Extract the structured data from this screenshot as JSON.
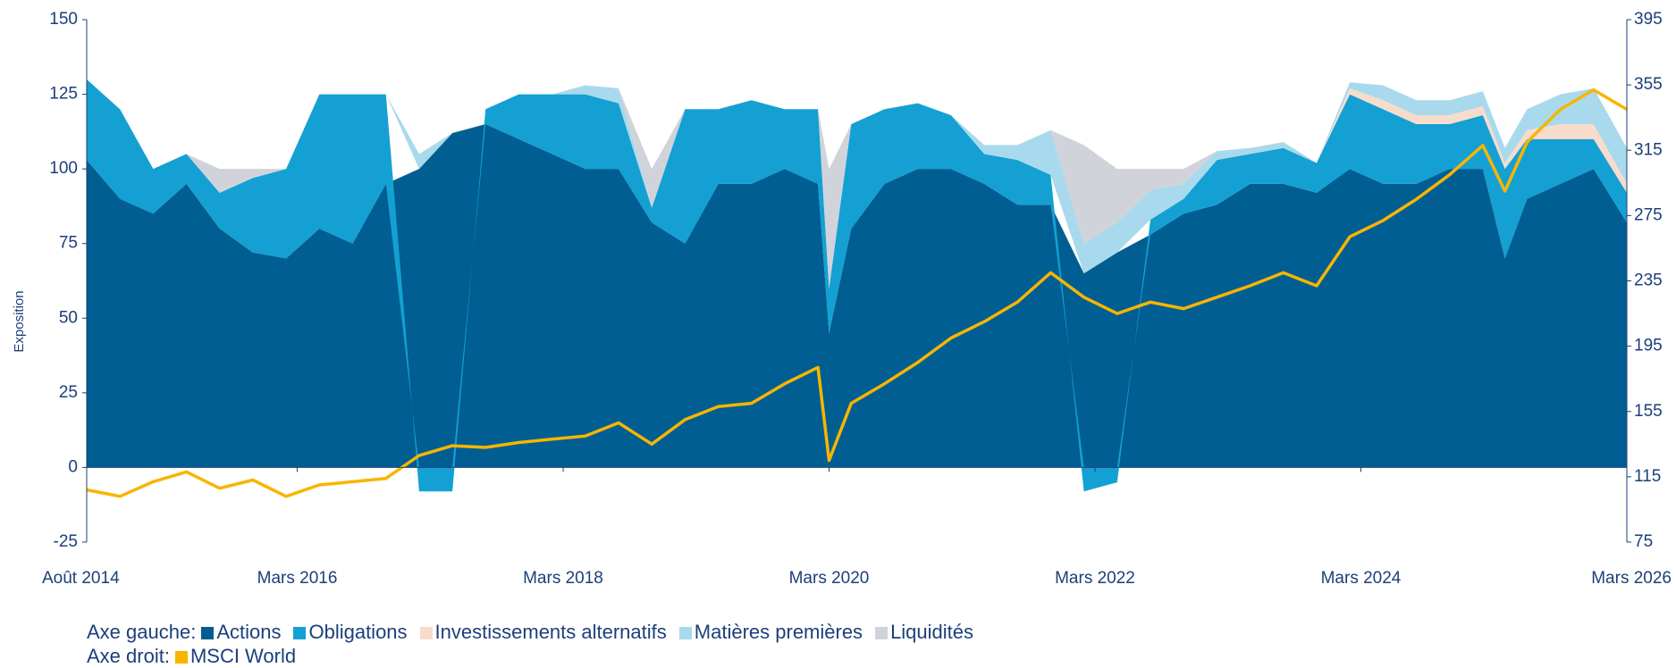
{
  "chart_data": {
    "type": "stacked-area-line",
    "y_label": "Exposition",
    "legend_left_label": "Axe gauche:",
    "legend_right_label": "Axe droit:",
    "x": [
      "2014-08",
      "2014-11",
      "2015-02",
      "2015-05",
      "2015-08",
      "2015-11",
      "2016-02",
      "2016-05",
      "2016-08",
      "2016-11",
      "2017-02",
      "2017-05",
      "2017-08",
      "2017-11",
      "2018-02",
      "2018-05",
      "2018-08",
      "2018-11",
      "2019-02",
      "2019-05",
      "2019-08",
      "2019-11",
      "2020-02",
      "2020-03",
      "2020-05",
      "2020-08",
      "2020-11",
      "2021-02",
      "2021-05",
      "2021-08",
      "2021-11",
      "2022-02",
      "2022-05",
      "2022-08",
      "2022-11",
      "2023-02",
      "2023-05",
      "2023-08",
      "2023-11",
      "2024-02",
      "2024-05",
      "2024-08",
      "2024-11",
      "2025-02",
      "2025-04",
      "2025-06",
      "2025-09",
      "2025-12",
      "2026-03"
    ],
    "xlim": [
      "2014-08",
      "2026-03"
    ],
    "xticks": [
      {
        "value": "2014-08",
        "label": "Août 2014"
      },
      {
        "value": "2016-03",
        "label": "Mars 2016"
      },
      {
        "value": "2018-03",
        "label": "Mars 2018"
      },
      {
        "value": "2020-03",
        "label": "Mars 2020"
      },
      {
        "value": "2022-03",
        "label": "Mars 2022"
      },
      {
        "value": "2024-03",
        "label": "Mars 2024"
      },
      {
        "value": "2026-03",
        "label": "Mars 2026"
      }
    ],
    "ylim": [
      -25,
      150
    ],
    "yticks": [
      -25,
      0,
      25,
      50,
      75,
      100,
      125,
      150
    ],
    "y2lim": [
      75,
      395
    ],
    "y2ticks": [
      75,
      115,
      155,
      195,
      235,
      275,
      315,
      355,
      395
    ],
    "series": [
      {
        "name": "Actions",
        "color": "#005e92",
        "values": [
          103,
          90,
          85,
          95,
          80,
          72,
          70,
          80,
          75,
          95,
          100,
          112,
          115,
          110,
          105,
          100,
          100,
          82,
          75,
          95,
          95,
          100,
          95,
          45,
          80,
          95,
          100,
          100,
          95,
          88,
          88,
          65,
          72,
          78,
          85,
          88,
          95,
          95,
          92,
          100,
          95,
          95,
          100,
          100,
          70,
          90,
          95,
          100,
          82
        ]
      },
      {
        "name": "Obligations",
        "color": "#14a0d2",
        "values": [
          27,
          30,
          15,
          10,
          12,
          25,
          30,
          45,
          50,
          30,
          -8,
          -8,
          5,
          15,
          20,
          25,
          22,
          5,
          45,
          25,
          28,
          20,
          25,
          15,
          35,
          25,
          22,
          18,
          10,
          15,
          10,
          -8,
          -5,
          5,
          5,
          15,
          10,
          12,
          10,
          25,
          25,
          20,
          15,
          18,
          30,
          20,
          15,
          10,
          10
        ]
      },
      {
        "name": "Investissements alternatifs",
        "color": "#f8dccb",
        "values": [
          0,
          0,
          0,
          0,
          0,
          0,
          0,
          0,
          0,
          0,
          0,
          0,
          0,
          0,
          0,
          0,
          0,
          0,
          0,
          0,
          0,
          0,
          0,
          0,
          0,
          0,
          0,
          0,
          0,
          0,
          0,
          0,
          0,
          0,
          0,
          0,
          0,
          0,
          0,
          2,
          3,
          3,
          3,
          3,
          2,
          3,
          5,
          5,
          3
        ]
      },
      {
        "name": "Matières premières",
        "color": "#a9d9ec",
        "values": [
          0,
          0,
          0,
          0,
          0,
          0,
          0,
          0,
          0,
          0,
          5,
          0,
          0,
          0,
          0,
          3,
          5,
          0,
          0,
          0,
          0,
          0,
          0,
          0,
          0,
          0,
          0,
          0,
          3,
          5,
          15,
          10,
          10,
          10,
          5,
          3,
          2,
          2,
          0,
          2,
          5,
          5,
          5,
          5,
          5,
          7,
          10,
          12,
          12
        ]
      },
      {
        "name": "Liquidités",
        "color": "#d1d3db",
        "values": [
          0,
          0,
          0,
          0,
          8,
          3,
          0,
          0,
          0,
          0,
          0,
          0,
          0,
          0,
          0,
          0,
          0,
          13,
          0,
          0,
          0,
          0,
          0,
          40,
          0,
          0,
          0,
          0,
          0,
          0,
          0,
          33,
          18,
          7,
          5,
          0,
          0,
          0,
          0,
          0,
          0,
          0,
          0,
          0,
          0,
          0,
          0,
          0,
          0
        ]
      },
      {
        "name": "MSCI World",
        "color": "#f7b500",
        "axis": "y2",
        "values": [
          107,
          103,
          112,
          118,
          108,
          113,
          103,
          110,
          112,
          114,
          128,
          134,
          133,
          136,
          138,
          140,
          148,
          135,
          150,
          158,
          160,
          172,
          182,
          125,
          160,
          172,
          185,
          200,
          210,
          222,
          240,
          225,
          215,
          222,
          218,
          225,
          232,
          240,
          232,
          262,
          272,
          285,
          300,
          318,
          290,
          320,
          340,
          352,
          340
        ]
      }
    ]
  }
}
